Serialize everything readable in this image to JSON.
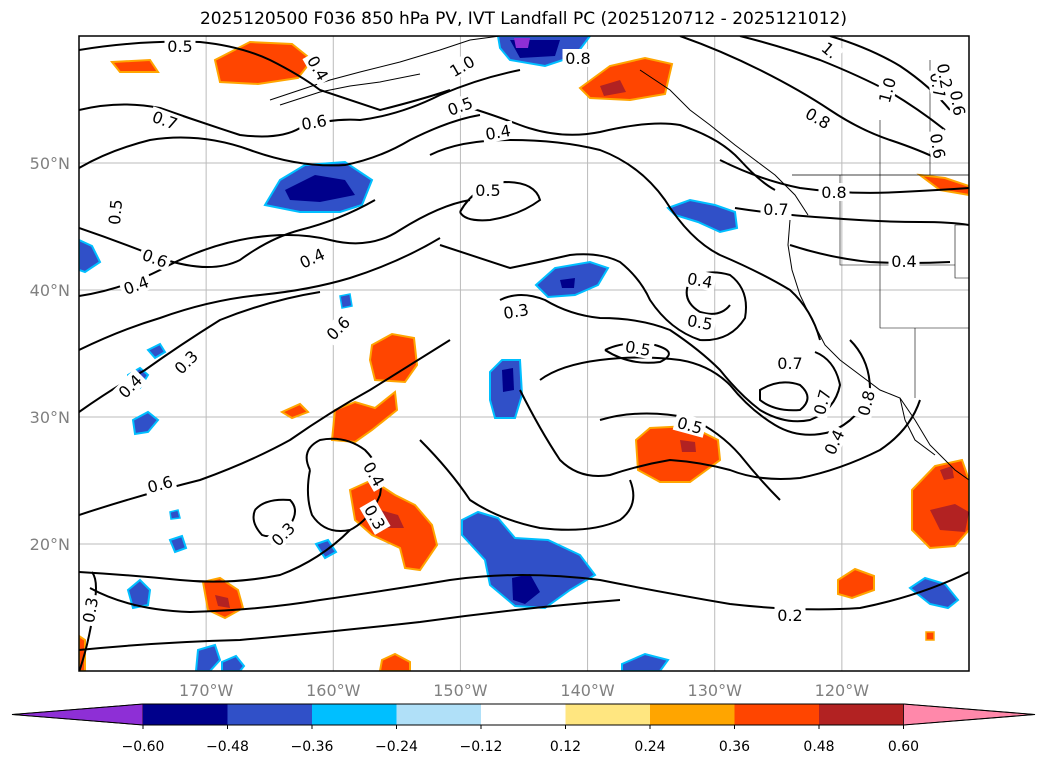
{
  "title": "2025120500 F036 850 hPa PV, IVT Landfall PC (2025120712 - 2025121012)",
  "map": {
    "lon_range": [
      -180,
      -110
    ],
    "lat_range": [
      10,
      60
    ],
    "grid_lons": [
      -170,
      -160,
      -150,
      -140,
      -130,
      -120
    ],
    "grid_lats": [
      20,
      30,
      40,
      50
    ],
    "lon_labels": [
      "170°W",
      "160°W",
      "150°W",
      "140°W",
      "130°W",
      "120°W"
    ],
    "lat_labels": [
      "20°N",
      "30°N",
      "40°N",
      "50°N"
    ]
  },
  "colorbar": {
    "colors": [
      "#8e2fd6",
      "#00008b",
      "#3050c8",
      "#00bfff",
      "#b0e0f8",
      "#ffffff",
      "#ffe680",
      "#ffa500",
      "#ff4500",
      "#b22222",
      "#ff88aa"
    ],
    "ticks": [
      "−0.60",
      "−0.48",
      "−0.36",
      "−0.24",
      "−0.12",
      "0.12",
      "0.24",
      "0.36",
      "0.48",
      "0.60"
    ]
  },
  "contour_labels": [
    "0.5",
    "0.4",
    "1.0",
    "0.8",
    "1.",
    "0.7",
    "0.6",
    "0.5",
    "0.7",
    "0.6",
    "0.4",
    "0.8",
    "1.0",
    "0.6",
    "0.8",
    "0.5",
    "0.5",
    "0.6",
    "0.4",
    "0.4",
    "0.6",
    "0.7",
    "0.4",
    "0.3",
    "0.5",
    "0.3",
    "0.4",
    "0.5",
    "0.7",
    "0.7",
    "0.8",
    "0.5",
    "0.4",
    "0.6",
    "0.4",
    "0.3",
    "0.3",
    "0.2",
    "0.4",
    "0.2",
    "0.3"
  ]
}
